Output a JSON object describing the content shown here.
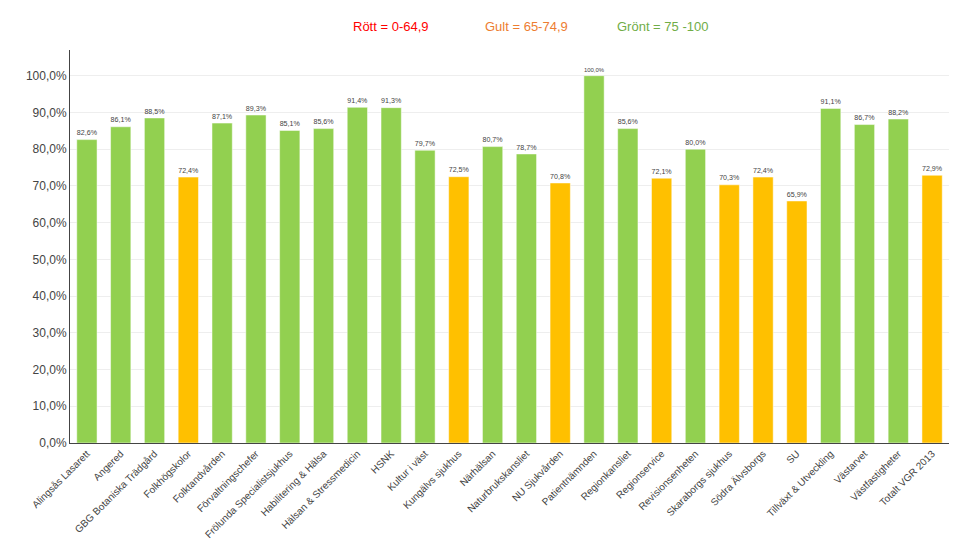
{
  "chart_data": {
    "type": "bar",
    "categories": [
      "Alingsås Lasarett",
      "Angered",
      "GBG Botaniska Trädgård",
      "Folkhögskolor",
      "Folktandvården",
      "Förvaltningschefer",
      "Frölunda Specialistsjukhus",
      "Habilitering & Hälsa",
      "Hälsan & Stressmedicin",
      "HSNK",
      "Kultur i väst",
      "Kungälvs sjukhus",
      "Närhälsan",
      "Naturbrukskansliet",
      "NU Sjukvården",
      "Patientnämnden",
      "Regionkansliet",
      "Regionservice",
      "Revisionsenheten",
      "Skaraborgs sjukhus",
      "Södra Älvsborgs",
      "SU",
      "Tillväxt & Utveckling",
      "Västarvet",
      "Västfastigheter",
      "Totalt VGR 2013"
    ],
    "values": [
      82.6,
      86.1,
      88.5,
      72.4,
      87.1,
      89.3,
      85.1,
      85.6,
      91.4,
      91.3,
      79.7,
      72.5,
      80.7,
      78.7,
      70.8,
      100.0,
      85.6,
      72.1,
      80.0,
      70.3,
      72.4,
      65.9,
      91.1,
      86.7,
      88.2,
      72.9
    ],
    "value_labels": [
      "82,6%",
      "86,1%",
      "88,5%",
      "72,4%",
      "87,1%",
      "89,3%",
      "85,1%",
      "85,6%",
      "91,4%",
      "91,3%",
      "79,7%",
      "72,5%",
      "80,7%",
      "78,7%",
      "70,8%",
      "100,0%",
      "85,6%",
      "72,1%",
      "80,0%",
      "70,3%",
      "72,4%",
      "65,9%",
      "91,1%",
      "86,7%",
      "88,2%",
      "72,9%"
    ],
    "colors": [
      "#92D050",
      "#92D050",
      "#92D050",
      "#FFC000",
      "#92D050",
      "#92D050",
      "#92D050",
      "#92D050",
      "#92D050",
      "#92D050",
      "#92D050",
      "#FFC000",
      "#92D050",
      "#92D050",
      "#FFC000",
      "#92D050",
      "#92D050",
      "#FFC000",
      "#92D050",
      "#FFC000",
      "#FFC000",
      "#FFC000",
      "#92D050",
      "#92D050",
      "#92D050",
      "#FFC000"
    ],
    "data_labels": true,
    "ylim": [
      0,
      107
    ],
    "yticks": [
      {
        "value": 0,
        "label": "0,0%"
      },
      {
        "value": 10,
        "label": "10,0%"
      },
      {
        "value": 20,
        "label": "20,0%"
      },
      {
        "value": 30,
        "label": "30,0%"
      },
      {
        "value": 40,
        "label": "40,0%"
      },
      {
        "value": 50,
        "label": "50,0%"
      },
      {
        "value": 60,
        "label": "60,0%"
      },
      {
        "value": 70,
        "label": "70,0%"
      },
      {
        "value": 80,
        "label": "80,0%"
      },
      {
        "value": 90,
        "label": "90,0%"
      },
      {
        "value": 100,
        "label": "100,0%"
      }
    ],
    "grid": true,
    "annotations": [
      {
        "text": "Rött = 0-64,9",
        "color": "#FF0000"
      },
      {
        "text": "Gult = 65-74,9",
        "color": "#ED7D31"
      },
      {
        "text": "Grönt = 75 -100",
        "color": "#70AD47"
      }
    ]
  }
}
